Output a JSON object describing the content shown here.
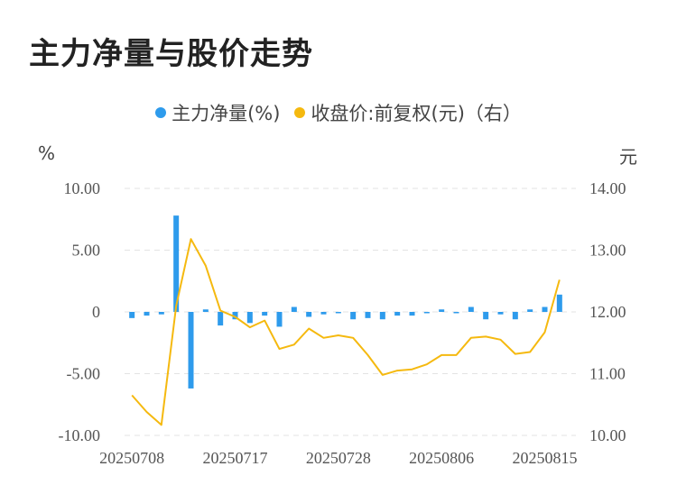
{
  "title": "主力净量与股价走势",
  "legend": {
    "series1": "主力净量(%)",
    "series2": "收盘价:前复权(元)（右）"
  },
  "left_unit": "%",
  "right_unit": "元",
  "colors": {
    "bar": "#2e9bec",
    "line": "#f5b90f",
    "grid": "#e3e3e3"
  },
  "chart_data": {
    "type": "bar+line",
    "categories": [
      "20250708",
      "20250709",
      "20250710",
      "20250711",
      "20250714",
      "20250715",
      "20250716",
      "20250717",
      "20250718",
      "20250721",
      "20250722",
      "20250723",
      "20250724",
      "20250725",
      "20250728",
      "20250729",
      "20250730",
      "20250731",
      "20250801",
      "20250804",
      "20250805",
      "20250806",
      "20250807",
      "20250808",
      "20250811",
      "20250812",
      "20250813",
      "20250814",
      "20250815",
      "20250816"
    ],
    "x_tick_labels": [
      "20250708",
      "20250717",
      "20250728",
      "20250806",
      "20250815"
    ],
    "x_tick_indices": [
      0,
      7,
      14,
      21,
      28
    ],
    "series": [
      {
        "name": "主力净量(%)",
        "axis": "left",
        "type": "bar",
        "values": [
          -0.5,
          -0.3,
          -0.2,
          7.8,
          -6.2,
          0.2,
          -1.1,
          -0.6,
          -0.9,
          -0.3,
          -1.2,
          0.4,
          -0.4,
          -0.2,
          -0.1,
          -0.6,
          -0.5,
          -0.6,
          -0.3,
          -0.3,
          0.0,
          0.2,
          -0.1,
          0.4,
          -0.6,
          -0.2,
          -0.6,
          0.2,
          0.4,
          1.4
        ]
      },
      {
        "name": "收盘价:前复权(元)（右）",
        "axis": "right",
        "type": "line",
        "values": [
          10.65,
          10.38,
          10.17,
          12.1,
          13.18,
          12.75,
          12.02,
          11.92,
          11.75,
          11.86,
          11.4,
          11.47,
          11.73,
          11.58,
          11.62,
          11.58,
          11.3,
          10.98,
          11.05,
          11.07,
          11.15,
          11.3,
          11.3,
          11.58,
          11.6,
          11.55,
          11.32,
          11.35,
          11.67,
          12.52
        ]
      }
    ],
    "ylim_left": [
      -10,
      10
    ],
    "ylim_right": [
      10,
      14
    ],
    "y_ticks_left": [
      "10.00",
      "5.00",
      "0",
      "-5.00",
      "-10.00"
    ],
    "y_ticks_right": [
      "14.00",
      "13.00",
      "12.00",
      "11.00",
      "10.00"
    ],
    "grid": true
  }
}
